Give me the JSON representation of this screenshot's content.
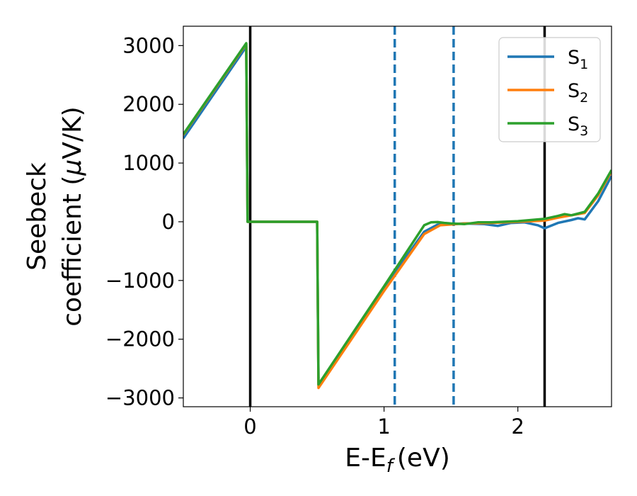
{
  "chart_data": {
    "type": "line",
    "xlabel": "E-E",
    "xlabel_sub": "f",
    "xlabel_unit": "(eV)",
    "ylabel_line1": "Seebeck",
    "ylabel_line2": "coefficient  (",
    "ylabel_mu": "μ",
    "ylabel_unit": "V/K)",
    "xlim": [
      -0.5,
      2.7
    ],
    "ylim": [
      -3150,
      3330
    ],
    "xticks": [
      0,
      1,
      2
    ],
    "xtick_labels": [
      "0",
      "1",
      "2"
    ],
    "yticks": [
      3000,
      2000,
      1000,
      0,
      -1000,
      -2000,
      -3000
    ],
    "ytick_labels": [
      "3000",
      "2000",
      "1000",
      "0",
      "−1000",
      "−2000",
      "−3000"
    ],
    "vlines_solid": [
      0.0,
      2.2
    ],
    "vlines_dashed": [
      1.08,
      1.52
    ],
    "legend_position": "top-right",
    "series": [
      {
        "name": "S",
        "sub": "1",
        "color": "#1f77b4",
        "points": [
          [
            -0.5,
            1420
          ],
          [
            -0.03,
            2980
          ],
          [
            -0.02,
            0
          ],
          [
            0.5,
            0
          ],
          [
            0.51,
            -2780
          ],
          [
            1.0,
            -1120
          ],
          [
            1.3,
            -170
          ],
          [
            1.4,
            -50
          ],
          [
            1.6,
            -30
          ],
          [
            1.75,
            -40
          ],
          [
            1.85,
            -70
          ],
          [
            1.95,
            -20
          ],
          [
            2.05,
            -10
          ],
          [
            2.15,
            -60
          ],
          [
            2.2,
            -110
          ],
          [
            2.3,
            -20
          ],
          [
            2.4,
            30
          ],
          [
            2.45,
            60
          ],
          [
            2.5,
            40
          ],
          [
            2.6,
            350
          ],
          [
            2.7,
            780
          ]
        ]
      },
      {
        "name": "S",
        "sub": "2",
        "color": "#ff7f0e",
        "points": [
          [
            -0.5,
            1480
          ],
          [
            -0.03,
            3030
          ],
          [
            -0.02,
            0
          ],
          [
            0.5,
            0
          ],
          [
            0.51,
            -2830
          ],
          [
            1.0,
            -1180
          ],
          [
            1.3,
            -210
          ],
          [
            1.42,
            -60
          ],
          [
            1.6,
            -30
          ],
          [
            1.8,
            -20
          ],
          [
            2.0,
            0
          ],
          [
            2.2,
            20
          ],
          [
            2.3,
            70
          ],
          [
            2.4,
            110
          ],
          [
            2.5,
            150
          ],
          [
            2.6,
            450
          ],
          [
            2.7,
            860
          ]
        ]
      },
      {
        "name": "S",
        "sub": "3",
        "color": "#2ca02c",
        "points": [
          [
            -0.5,
            1490
          ],
          [
            -0.03,
            3040
          ],
          [
            -0.02,
            0
          ],
          [
            0.5,
            0
          ],
          [
            0.51,
            -2770
          ],
          [
            1.0,
            -1100
          ],
          [
            1.3,
            -60
          ],
          [
            1.35,
            -10
          ],
          [
            1.4,
            -5
          ],
          [
            1.45,
            -20
          ],
          [
            1.5,
            -30
          ],
          [
            1.6,
            -40
          ],
          [
            1.7,
            -10
          ],
          [
            1.8,
            -10
          ],
          [
            2.0,
            10
          ],
          [
            2.2,
            50
          ],
          [
            2.3,
            100
          ],
          [
            2.35,
            130
          ],
          [
            2.4,
            110
          ],
          [
            2.5,
            170
          ],
          [
            2.6,
            480
          ],
          [
            2.7,
            880
          ]
        ]
      }
    ]
  }
}
